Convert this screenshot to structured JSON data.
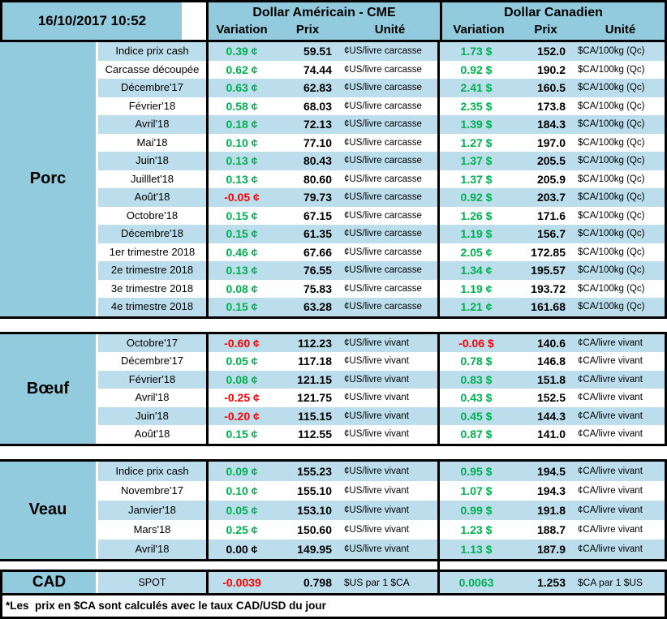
{
  "header": {
    "datetime": "16/10/2017 10:52",
    "us_group": "Dollar Américain - CME",
    "ca_group": "Dollar Canadien",
    "col_variation": "Variation",
    "col_prix": "Prix",
    "col_unite": "Unité"
  },
  "colors": {
    "positive_green": "#00B050",
    "negative_red": "#FF0000",
    "stripe_blue": "#BCDEEC",
    "header_blue": "#92CBDE"
  },
  "sections": [
    {
      "label": "Porc",
      "rows": [
        {
          "label": "Indice prix cash",
          "us_var": "0.39 ¢",
          "us_prix": "59.51",
          "us_unit": "¢US/livre carcasse",
          "ca_var": "1.73 $",
          "ca_prix": "152.0",
          "ca_unit": "$CA/100kg (Qc)"
        },
        {
          "label": "Carcasse découpée",
          "us_var": "0.62 ¢",
          "us_prix": "74.44",
          "us_unit": "¢US/livre carcasse",
          "ca_var": "0.92 $",
          "ca_prix": "190.2",
          "ca_unit": "$CA/100kg (Qc)"
        },
        {
          "label": "Décembre'17",
          "us_var": "0.63 ¢",
          "us_prix": "62.83",
          "us_unit": "¢US/livre carcasse",
          "ca_var": "2.41 $",
          "ca_prix": "160.5",
          "ca_unit": "$CA/100kg (Qc)"
        },
        {
          "label": "Février'18",
          "us_var": "0.58 ¢",
          "us_prix": "68.03",
          "us_unit": "¢US/livre carcasse",
          "ca_var": "2.35 $",
          "ca_prix": "173.8",
          "ca_unit": "$CA/100kg (Qc)"
        },
        {
          "label": "Avril'18",
          "us_var": "0.18 ¢",
          "us_prix": "72.13",
          "us_unit": "¢US/livre carcasse",
          "ca_var": "1.39 $",
          "ca_prix": "184.3",
          "ca_unit": "$CA/100kg (Qc)"
        },
        {
          "label": "Mai'18",
          "us_var": "0.10 ¢",
          "us_prix": "77.10",
          "us_unit": "¢US/livre carcasse",
          "ca_var": "1.27 $",
          "ca_prix": "197.0",
          "ca_unit": "$CA/100kg (Qc)"
        },
        {
          "label": "Juin'18",
          "us_var": "0.13 ¢",
          "us_prix": "80.43",
          "us_unit": "¢US/livre carcasse",
          "ca_var": "1.37 $",
          "ca_prix": "205.5",
          "ca_unit": "$CA/100kg (Qc)"
        },
        {
          "label": "Juilllet'18",
          "us_var": "0.13 ¢",
          "us_prix": "80.60",
          "us_unit": "¢US/livre carcasse",
          "ca_var": "1.37 $",
          "ca_prix": "205.9",
          "ca_unit": "$CA/100kg (Qc)"
        },
        {
          "label": "Août'18",
          "us_var": "-0.05 ¢",
          "us_prix": "79.73",
          "us_unit": "¢US/livre carcasse",
          "ca_var": "0.92 $",
          "ca_prix": "203.7",
          "ca_unit": "$CA/100kg (Qc)"
        },
        {
          "label": "Octobre'18",
          "us_var": "0.15 ¢",
          "us_prix": "67.15",
          "us_unit": "¢US/livre carcasse",
          "ca_var": "1.26 $",
          "ca_prix": "171.6",
          "ca_unit": "$CA/100kg (Qc)"
        },
        {
          "label": "Décembre'18",
          "us_var": "0.15 ¢",
          "us_prix": "61.35",
          "us_unit": "¢US/livre carcasse",
          "ca_var": "1.19 $",
          "ca_prix": "156.7",
          "ca_unit": "$CA/100kg (Qc)"
        },
        {
          "label": "1er trimestre 2018",
          "us_var": "0.46 ¢",
          "us_prix": "67.66",
          "us_unit": "¢US/livre carcasse",
          "ca_var": "2.05 ¢",
          "ca_prix": "172.85",
          "ca_unit": "$CA/100kg (Qc)"
        },
        {
          "label": "2e trimestre 2018",
          "us_var": "0.13 ¢",
          "us_prix": "76.55",
          "us_unit": "¢US/livre carcasse",
          "ca_var": "1.34 ¢",
          "ca_prix": "195.57",
          "ca_unit": "$CA/100kg (Qc)"
        },
        {
          "label": "3e trimestre 2018",
          "us_var": "0.08 ¢",
          "us_prix": "75.83",
          "us_unit": "¢US/livre carcasse",
          "ca_var": "1.19 ¢",
          "ca_prix": "193.72",
          "ca_unit": "$CA/100kg (Qc)"
        },
        {
          "label": "4e trimestre 2018",
          "us_var": "0.15 ¢",
          "us_prix": "63.28",
          "us_unit": "¢US/livre carcasse",
          "ca_var": "1.21 ¢",
          "ca_prix": "161.68",
          "ca_unit": "$CA/100kg (Qc)"
        }
      ]
    },
    {
      "label": "Bœuf",
      "rows": [
        {
          "label": "Octobre'17",
          "us_var": "-0.60 ¢",
          "us_prix": "112.23",
          "us_unit": "¢US/livre vivant",
          "ca_var": "-0.06 $",
          "ca_prix": "140.6",
          "ca_unit": "¢CA/livre vivant"
        },
        {
          "label": "Décembre'17",
          "us_var": "0.05 ¢",
          "us_prix": "117.18",
          "us_unit": "¢US/livre vivant",
          "ca_var": "0.78 $",
          "ca_prix": "146.8",
          "ca_unit": "¢CA/livre vivant"
        },
        {
          "label": "Février'18",
          "us_var": "0.08 ¢",
          "us_prix": "121.15",
          "us_unit": "¢US/livre vivant",
          "ca_var": "0.83 $",
          "ca_prix": "151.8",
          "ca_unit": "¢CA/livre vivant"
        },
        {
          "label": "Avril'18",
          "us_var": "-0.25 ¢",
          "us_prix": "121.75",
          "us_unit": "¢US/livre vivant",
          "ca_var": "0.43 $",
          "ca_prix": "152.5",
          "ca_unit": "¢CA/livre vivant"
        },
        {
          "label": "Juin'18",
          "us_var": "-0.20 ¢",
          "us_prix": "115.15",
          "us_unit": "¢US/livre vivant",
          "ca_var": "0.45 $",
          "ca_prix": "144.3",
          "ca_unit": "¢CA/livre vivant"
        },
        {
          "label": "Août'18",
          "us_var": "0.15 ¢",
          "us_prix": "112.55",
          "us_unit": "¢US/livre vivant",
          "ca_var": "0.87 $",
          "ca_prix": "141.0",
          "ca_unit": "¢CA/livre vivant"
        }
      ]
    },
    {
      "label": "Veau",
      "rows": [
        {
          "label": "Indice prix cash",
          "us_var": "0.09 ¢",
          "us_prix": "155.23",
          "us_unit": "¢US/livre vivant",
          "ca_var": "0.95 $",
          "ca_prix": "194.5",
          "ca_unit": "¢CA/livre vivant"
        },
        {
          "label": "Novembre'17",
          "us_var": "0.10 ¢",
          "us_prix": "155.10",
          "us_unit": "¢US/livre vivant",
          "ca_var": "1.07 $",
          "ca_prix": "194.3",
          "ca_unit": "¢CA/livre vivant"
        },
        {
          "label": "Janvier'18",
          "us_var": "0.05 ¢",
          "us_prix": "153.10",
          "us_unit": "¢US/livre vivant",
          "ca_var": "0.99 $",
          "ca_prix": "191.8",
          "ca_unit": "¢CA/livre vivant"
        },
        {
          "label": "Mars'18",
          "us_var": "0.25 ¢",
          "us_prix": "150.60",
          "us_unit": "¢US/livre vivant",
          "ca_var": "1.23 $",
          "ca_prix": "188.7",
          "ca_unit": "¢CA/livre vivant"
        },
        {
          "label": "Avril'18",
          "us_var": "0.00 ¢",
          "us_prix": "149.95",
          "us_unit": "¢US/livre vivant",
          "ca_var": "1.13 $",
          "ca_prix": "187.9",
          "ca_unit": "¢CA/livre vivant"
        }
      ]
    }
  ],
  "cad": {
    "label": "CAD",
    "row_label": "SPOT",
    "us_var": "-0.0039",
    "us_prix": "0.798",
    "us_unit": "$US par 1 $CA",
    "ca_var": "0.0063",
    "ca_prix": "1.253",
    "ca_unit": "$CA par 1 $US"
  },
  "footnote": "*Les  prix en $CA sont calculés avec le taux CAD/USD du jour"
}
